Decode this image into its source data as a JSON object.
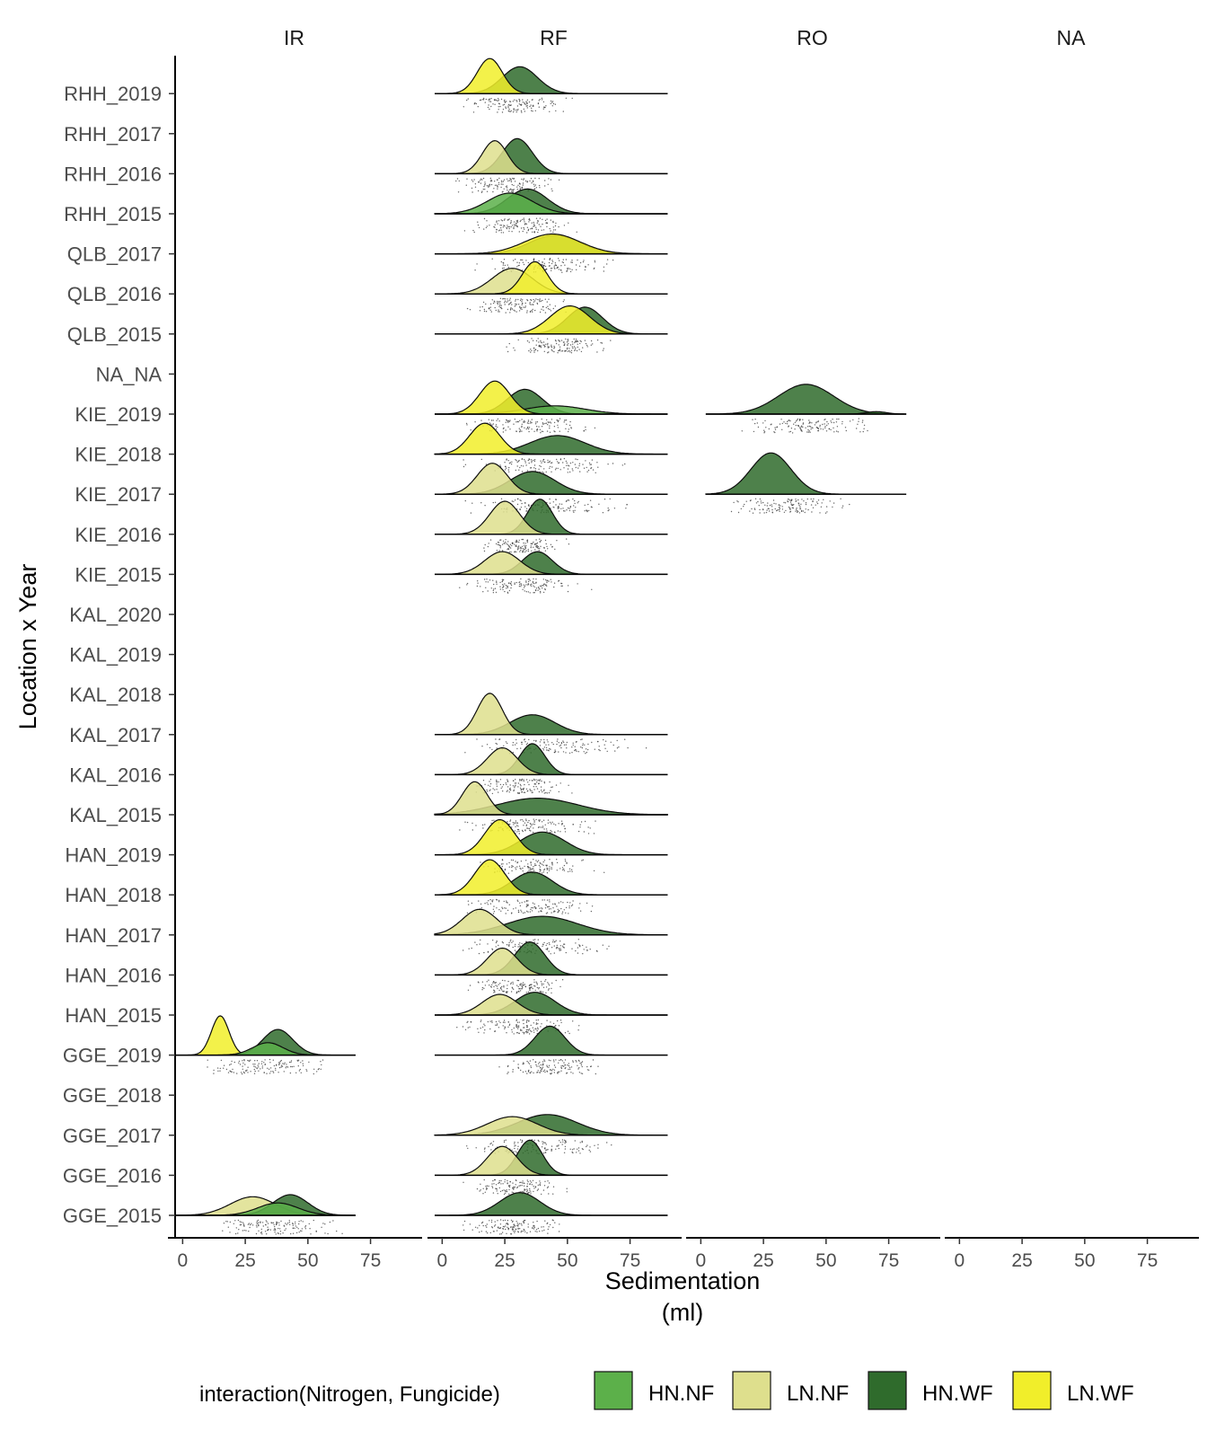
{
  "chart_data": {
    "type": "ridgeline",
    "ylabel": "Location x Year",
    "xlabel_lines": [
      "Sedimentation",
      "(ml)"
    ],
    "xlim": [
      -3,
      92
    ],
    "x_ticks": [
      0,
      25,
      50,
      75
    ],
    "rows": [
      "GGE_2015",
      "GGE_2016",
      "GGE_2017",
      "GGE_2018",
      "GGE_2019",
      "HAN_2015",
      "HAN_2016",
      "HAN_2017",
      "HAN_2018",
      "HAN_2019",
      "KAL_2015",
      "KAL_2016",
      "KAL_2017",
      "KAL_2018",
      "KAL_2019",
      "KAL_2020",
      "KIE_2015",
      "KIE_2016",
      "KIE_2017",
      "KIE_2018",
      "KIE_2019",
      "NA_NA",
      "QLB_2015",
      "QLB_2016",
      "QLB_2017",
      "RHH_2015",
      "RHH_2016",
      "RHH_2017",
      "RHH_2019"
    ],
    "facets": [
      "IR",
      "RF",
      "RO",
      "NA"
    ],
    "legend": {
      "title": "interaction(Nitrogen, Fungicide)",
      "position": "bottom",
      "entries": [
        {
          "label": "HN.NF",
          "color": "#5cb04a"
        },
        {
          "label": "LN.NF",
          "color": "#dedf8d"
        },
        {
          "label": "HN.WF",
          "color": "#2f6b2c"
        },
        {
          "label": "LN.WF",
          "color": "#f1ee2a"
        }
      ]
    },
    "ridges": [
      {
        "facet": "IR",
        "row": "GGE_2019",
        "range": [
          -3,
          69
        ],
        "peaks": [
          {
            "group": "LN.WF",
            "mean": 15,
            "sd": 3.5,
            "height": 0.95
          },
          {
            "group": "HN.WF",
            "mean": 38,
            "sd": 6,
            "height": 0.62
          },
          {
            "group": "HN.NF",
            "mean": 34,
            "sd": 6,
            "height": 0.3
          }
        ],
        "rug": [
          5,
          62
        ]
      },
      {
        "facet": "IR",
        "row": "GGE_2015",
        "range": [
          -3,
          69
        ],
        "peaks": [
          {
            "group": "LN.NF",
            "mean": 28,
            "sd": 9,
            "height": 0.45
          },
          {
            "group": "HN.WF",
            "mean": 43,
            "sd": 7,
            "height": 0.5
          },
          {
            "group": "HN.NF",
            "mean": 38,
            "sd": 8,
            "height": 0.3
          }
        ],
        "rug": [
          8,
          65
        ]
      },
      {
        "facet": "RF",
        "row": "RHH_2019",
        "range": [
          -3,
          90
        ],
        "peaks": [
          {
            "group": "HN.WF",
            "mean": 31,
            "sd": 7,
            "height": 0.65
          },
          {
            "group": "LN.WF",
            "mean": 19,
            "sd": 5,
            "height": 0.85
          }
        ],
        "rug": [
          8,
          52
        ]
      },
      {
        "facet": "RF",
        "row": "RHH_2016",
        "range": [
          -3,
          90
        ],
        "peaks": [
          {
            "group": "HN.WF",
            "mean": 30,
            "sd": 6,
            "height": 0.85
          },
          {
            "group": "LN.NF",
            "mean": 21,
            "sd": 5,
            "height": 0.8
          }
        ],
        "rug": [
          5,
          48
        ]
      },
      {
        "facet": "RF",
        "row": "RHH_2015",
        "range": [
          -3,
          90
        ],
        "peaks": [
          {
            "group": "HN.WF",
            "mean": 34,
            "sd": 8,
            "height": 0.6
          },
          {
            "group": "HN.NF",
            "mean": 27,
            "sd": 9,
            "height": 0.5
          }
        ],
        "rug": [
          8,
          55
        ]
      },
      {
        "facet": "RF",
        "row": "QLB_2017",
        "range": [
          -3,
          90
        ],
        "peaks": [
          {
            "group": "HN.WF",
            "mean": 45,
            "sd": 10,
            "height": 0.45
          },
          {
            "group": "LN.WF",
            "mean": 44,
            "sd": 11,
            "height": 0.48
          }
        ],
        "rug": [
          12,
          70
        ]
      },
      {
        "facet": "RF",
        "row": "QLB_2016",
        "range": [
          -3,
          90
        ],
        "peaks": [
          {
            "group": "LN.NF",
            "mean": 28,
            "sd": 8,
            "height": 0.62
          },
          {
            "group": "LN.WF",
            "mean": 37,
            "sd": 5,
            "height": 0.78
          }
        ],
        "rug": [
          8,
          52
        ]
      },
      {
        "facet": "RF",
        "row": "QLB_2015",
        "range": [
          -3,
          90
        ],
        "peaks": [
          {
            "group": "HN.WF",
            "mean": 57,
            "sd": 7,
            "height": 0.65
          },
          {
            "group": "LN.WF",
            "mean": 51,
            "sd": 8,
            "height": 0.68
          }
        ],
        "rug": [
          25,
          70
        ]
      },
      {
        "facet": "RF",
        "row": "KIE_2019",
        "range": [
          -3,
          90
        ],
        "peaks": [
          {
            "group": "HN.WF",
            "mean": 33,
            "sd": 7,
            "height": 0.6
          },
          {
            "group": "HN.NF",
            "mean": 45,
            "sd": 12,
            "height": 0.2
          },
          {
            "group": "LN.WF",
            "mean": 21,
            "sd": 6,
            "height": 0.8
          }
        ],
        "rug": [
          8,
          62
        ]
      },
      {
        "facet": "RF",
        "row": "KIE_2018",
        "range": [
          -3,
          90
        ],
        "peaks": [
          {
            "group": "HN.WF",
            "mean": 46,
            "sd": 11,
            "height": 0.45
          },
          {
            "group": "LN.WF",
            "mean": 17,
            "sd": 6,
            "height": 0.75
          }
        ],
        "rug": [
          8,
          75
        ]
      },
      {
        "facet": "RF",
        "row": "KIE_2017",
        "range": [
          -3,
          90
        ],
        "peaks": [
          {
            "group": "HN.WF",
            "mean": 36,
            "sd": 9,
            "height": 0.55
          },
          {
            "group": "LN.NF",
            "mean": 20,
            "sd": 6,
            "height": 0.75
          }
        ],
        "rug": [
          5,
          75
        ]
      },
      {
        "facet": "RF",
        "row": "KIE_2016",
        "range": [
          -3,
          90
        ],
        "peaks": [
          {
            "group": "HN.WF",
            "mean": 39,
            "sd": 5,
            "height": 0.85
          },
          {
            "group": "LN.NF",
            "mean": 25,
            "sd": 6,
            "height": 0.8
          }
        ],
        "rug": [
          10,
          52
        ]
      },
      {
        "facet": "RF",
        "row": "KIE_2015",
        "range": [
          -3,
          90
        ],
        "peaks": [
          {
            "group": "HN.WF",
            "mean": 38,
            "sd": 6,
            "height": 0.55
          },
          {
            "group": "LN.NF",
            "mean": 24,
            "sd": 7,
            "height": 0.55
          }
        ],
        "rug": [
          5,
          60
        ]
      },
      {
        "facet": "RF",
        "row": "KAL_2017",
        "range": [
          -3,
          90
        ],
        "peaks": [
          {
            "group": "HN.WF",
            "mean": 36,
            "sd": 9,
            "height": 0.48
          },
          {
            "group": "LN.NF",
            "mean": 19,
            "sd": 5,
            "height": 1.0
          }
        ],
        "rug": [
          8,
          85
        ]
      },
      {
        "facet": "RF",
        "row": "KAL_2016",
        "range": [
          -3,
          90
        ],
        "peaks": [
          {
            "group": "HN.WF",
            "mean": 36,
            "sd": 5,
            "height": 0.75
          },
          {
            "group": "LN.NF",
            "mean": 24,
            "sd": 6,
            "height": 0.65
          }
        ],
        "rug": [
          8,
          52
        ]
      },
      {
        "facet": "RF",
        "row": "KAL_2015",
        "range": [
          -3,
          90
        ],
        "peaks": [
          {
            "group": "HN.WF",
            "mean": 38,
            "sd": 16,
            "height": 0.4
          },
          {
            "group": "LN.NF",
            "mean": 13,
            "sd": 5,
            "height": 0.8
          }
        ],
        "rug": [
          5,
          65
        ]
      },
      {
        "facet": "RF",
        "row": "HAN_2019",
        "range": [
          -3,
          90
        ],
        "peaks": [
          {
            "group": "HN.WF",
            "mean": 40,
            "sd": 9,
            "height": 0.55
          },
          {
            "group": "LN.WF",
            "mean": 23,
            "sd": 6,
            "height": 0.85
          }
        ],
        "rug": [
          8,
          65
        ]
      },
      {
        "facet": "RF",
        "row": "HAN_2018",
        "range": [
          -3,
          90
        ],
        "peaks": [
          {
            "group": "HN.WF",
            "mean": 36,
            "sd": 8,
            "height": 0.55
          },
          {
            "group": "LN.WF",
            "mean": 19,
            "sd": 6,
            "height": 0.85
          }
        ],
        "rug": [
          8,
          65
        ]
      },
      {
        "facet": "RF",
        "row": "HAN_2017",
        "range": [
          -3,
          90
        ],
        "peaks": [
          {
            "group": "HN.WF",
            "mean": 40,
            "sd": 14,
            "height": 0.45
          },
          {
            "group": "LN.NF",
            "mean": 15,
            "sd": 7,
            "height": 0.62
          }
        ],
        "rug": [
          5,
          70
        ]
      },
      {
        "facet": "RF",
        "row": "HAN_2016",
        "range": [
          -3,
          90
        ],
        "peaks": [
          {
            "group": "HN.WF",
            "mean": 35,
            "sd": 6,
            "height": 0.8
          },
          {
            "group": "LN.NF",
            "mean": 24,
            "sd": 6,
            "height": 0.65
          }
        ],
        "rug": [
          8,
          52
        ]
      },
      {
        "facet": "RF",
        "row": "HAN_2015",
        "range": [
          -3,
          90
        ],
        "peaks": [
          {
            "group": "HN.WF",
            "mean": 37,
            "sd": 8,
            "height": 0.55
          },
          {
            "group": "LN.NF",
            "mean": 23,
            "sd": 7,
            "height": 0.5
          }
        ],
        "rug": [
          5,
          58
        ]
      },
      {
        "facet": "RF",
        "row": "GGE_2019",
        "range": [
          -3,
          90
        ],
        "peaks": [
          {
            "group": "HN.WF",
            "mean": 43,
            "sd": 6,
            "height": 0.7
          }
        ],
        "rug": [
          20,
          65
        ]
      },
      {
        "facet": "RF",
        "row": "GGE_2017",
        "range": [
          -3,
          90
        ],
        "peaks": [
          {
            "group": "HN.WF",
            "mean": 42,
            "sd": 12,
            "height": 0.5
          },
          {
            "group": "LN.NF",
            "mean": 28,
            "sd": 10,
            "height": 0.45
          }
        ],
        "rug": [
          5,
          72
        ]
      },
      {
        "facet": "RF",
        "row": "GGE_2016",
        "range": [
          -3,
          90
        ],
        "peaks": [
          {
            "group": "HN.WF",
            "mean": 35,
            "sd": 5,
            "height": 0.85
          },
          {
            "group": "LN.NF",
            "mean": 24,
            "sd": 6,
            "height": 0.7
          }
        ],
        "rug": [
          8,
          50
        ]
      },
      {
        "facet": "RF",
        "row": "GGE_2015",
        "range": [
          -3,
          90
        ],
        "peaks": [
          {
            "group": "HN.WF",
            "mean": 31,
            "sd": 8,
            "height": 0.55
          }
        ],
        "rug": [
          8,
          52
        ]
      },
      {
        "facet": "RO",
        "row": "KIE_2019",
        "range": [
          2,
          82
        ],
        "peaks": [
          {
            "group": "HN.WF",
            "mean": 42,
            "sd": 11,
            "height": 0.72
          },
          {
            "group": "HN.WF",
            "mean": 70,
            "sd": 4,
            "height": 0.06
          }
        ],
        "rug": [
          15,
          72
        ]
      },
      {
        "facet": "RO",
        "row": "KIE_2017",
        "range": [
          2,
          82
        ],
        "peaks": [
          {
            "group": "HN.WF",
            "mean": 28,
            "sd": 8,
            "height": 1.0
          }
        ],
        "rug": [
          10,
          60
        ]
      }
    ]
  }
}
